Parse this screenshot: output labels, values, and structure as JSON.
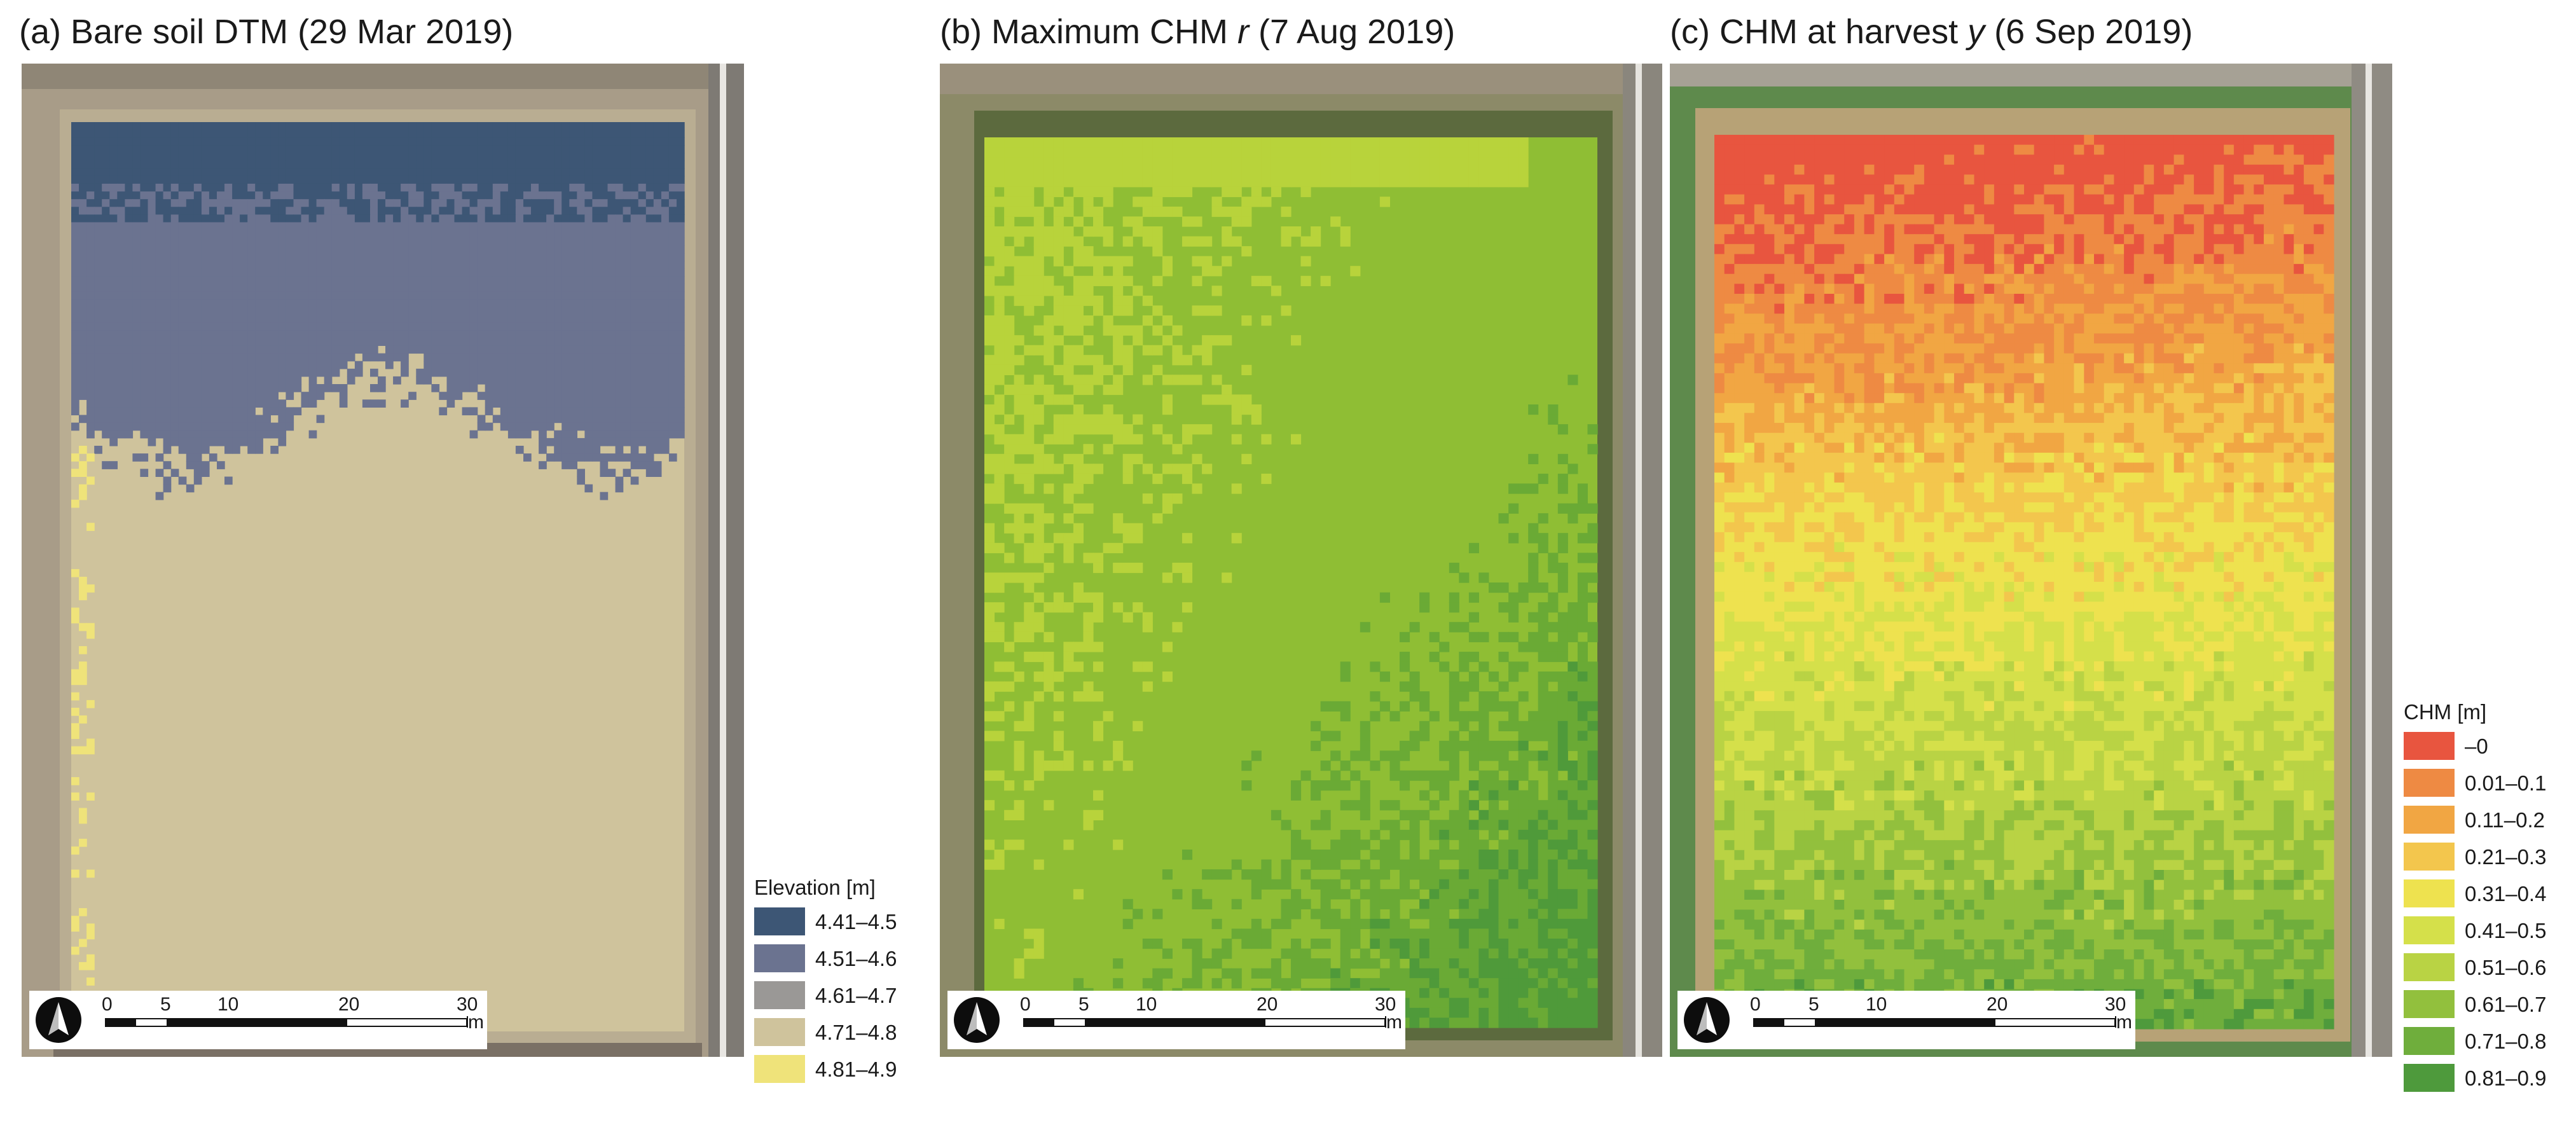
{
  "panels": [
    {
      "id": "a",
      "title_pre": "(a) Bare soil DTM (29 Mar 2019)",
      "title_var": "",
      "title_post": "",
      "legend": {
        "title": "Elevation [m]",
        "classes": [
          {
            "label": "4.41–4.5",
            "color": "#3d5675"
          },
          {
            "label": "4.51–4.6",
            "color": "#6b7390"
          },
          {
            "label": "4.61–4.7",
            "color": "#9a9896"
          },
          {
            "label": "4.71–4.8",
            "color": "#cfc39c"
          },
          {
            "label": "4.81–4.9",
            "color": "#efe37a"
          }
        ]
      }
    },
    {
      "id": "b",
      "title_pre": "(b) Maximum CHM ",
      "title_var": "r",
      "title_post": " (7 Aug 2019)"
    },
    {
      "id": "c",
      "title_pre": "(c) CHM at harvest ",
      "title_var": "y",
      "title_post": " (6 Sep 2019)",
      "legend": {
        "title": "CHM [m]",
        "classes": [
          {
            "label": "–0",
            "color": "#e8553f"
          },
          {
            "label": "0.01–0.1",
            "color": "#ee8a43"
          },
          {
            "label": "0.11–0.2",
            "color": "#f1a643"
          },
          {
            "label": "0.21–0.3",
            "color": "#f3c64d"
          },
          {
            "label": "0.31–0.4",
            "color": "#eee24f"
          },
          {
            "label": "0.41–0.5",
            "color": "#d5e04a"
          },
          {
            "label": "0.51–0.6",
            "color": "#b9d344"
          },
          {
            "label": "0.61–0.7",
            "color": "#92c03d"
          },
          {
            "label": "0.71–0.8",
            "color": "#6fae3c"
          },
          {
            "label": "0.81–0.9",
            "color": "#4e9a3c"
          }
        ]
      }
    }
  ],
  "scale_bar": {
    "ticks": [
      "0",
      "5",
      "10",
      "20",
      "30"
    ],
    "unit": "m"
  },
  "map_colors": {
    "dtm_low": "#3d5675",
    "dtm_mid": "#6b7390",
    "dtm_base": "#cfc39c",
    "dtm_edge": "#efe37a",
    "chm_max_base": "#8fbe34",
    "chm_max_light": "#b8d33b",
    "chm_max_dark": "#6aaa35",
    "chm_max_darker": "#4f9a3a"
  }
}
